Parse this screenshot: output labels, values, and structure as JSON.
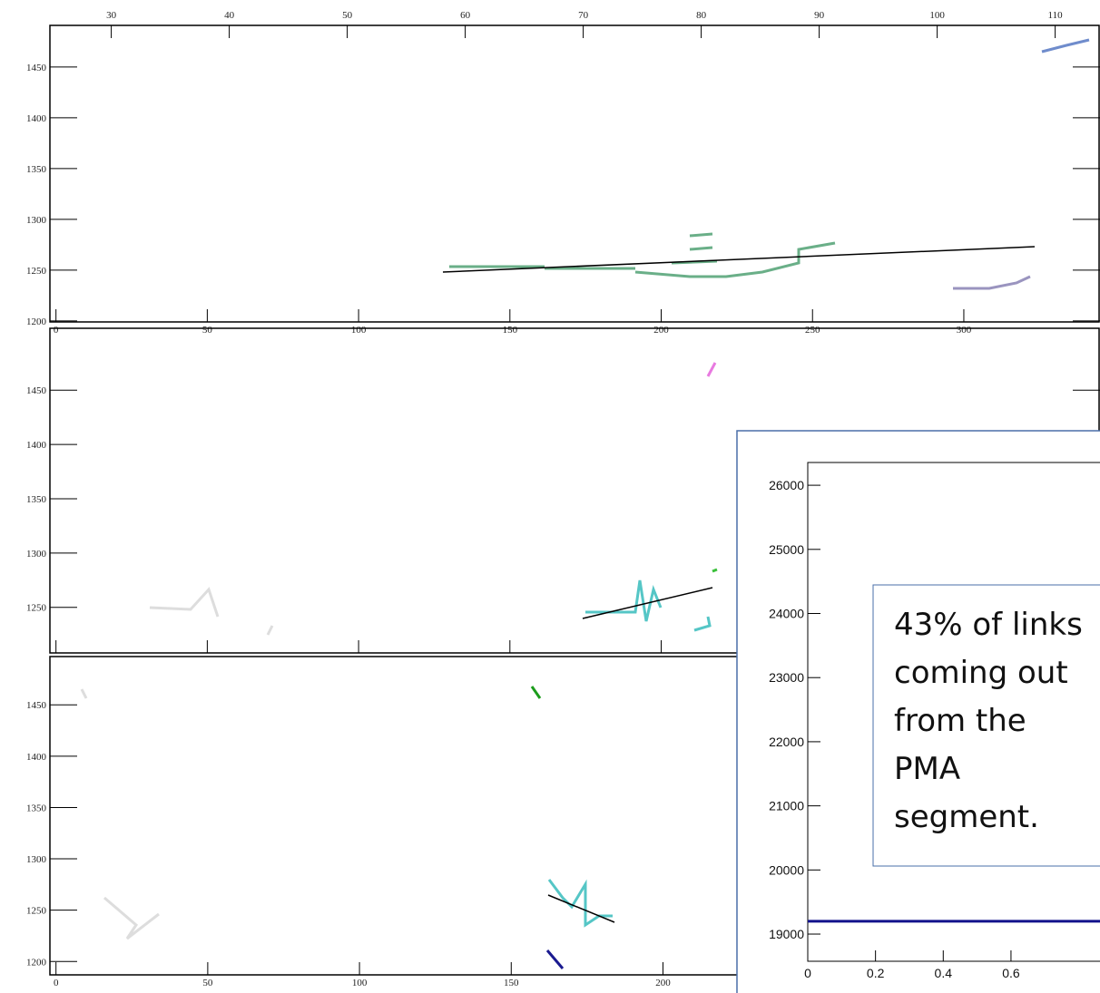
{
  "panels": [
    {
      "xlim": [
        -2,
        345
      ],
      "xticks": [
        0,
        50,
        100,
        150,
        200,
        250,
        300
      ],
      "x2lim": [
        24.8,
        113.8
      ],
      "x2ticks": [
        30,
        40,
        50,
        60,
        70,
        80,
        90,
        100,
        110
      ],
      "ylim": [
        1199,
        1491
      ],
      "yticks": [
        1200,
        1250,
        1300,
        1350,
        1400,
        1450
      ]
    },
    {
      "xlim": [
        -2,
        345
      ],
      "ylim": [
        1208,
        1507
      ],
      "yticks": [
        1250,
        1300,
        1350,
        1400,
        1450
      ]
    },
    {
      "xlim": [
        -2,
        344
      ],
      "xticks": [
        0,
        50,
        100,
        150,
        200
      ],
      "ylim": [
        1187,
        1497
      ],
      "yticks": [
        1200,
        1250,
        1300,
        1350,
        1400,
        1450
      ]
    }
  ],
  "inset": {
    "type": "line",
    "xlim": [
      0,
      0.911
    ],
    "xticks": [
      0,
      0.2,
      0.4,
      0.6
    ],
    "ylim": [
      18576,
      26355
    ],
    "yticks": [
      19000,
      20000,
      21000,
      22000,
      23000,
      24000,
      25000,
      26000
    ],
    "level": 19200,
    "color": "#12128c"
  },
  "callout": {
    "lines": [
      "43% of links",
      "coming out",
      "from the",
      "PMA",
      "segment."
    ]
  }
}
